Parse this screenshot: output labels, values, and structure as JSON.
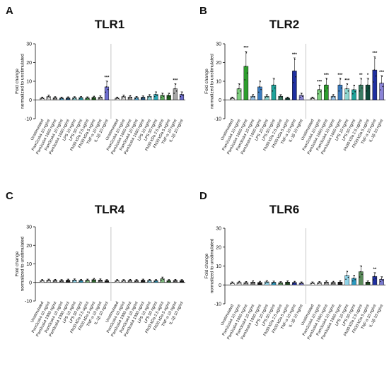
{
  "chart_data": [
    {
      "type": "bar",
      "panel_label": "A",
      "title": "TLR1",
      "ylabel": [
        "Fold change",
        "normalized to unstimulated"
      ],
      "ylim": [
        -10,
        30
      ],
      "yticks": [
        -10,
        0,
        10,
        20,
        30
      ],
      "categories": [
        "Unstimulated",
        "Pam2csk4 10 ng/ml",
        "Pam2csk4 1000 ng/ml",
        "Pam3csk4 10 ng/ml",
        "Pam3csk4 1000 ng/ml",
        "LPS 10 ng/ml",
        "LPS 50 ng/ml",
        "FN30 kDa 2.5 ug/ml",
        "FN30 kDa 5 ug/ml",
        "TNF-α 10 ng/ml",
        "IL-1β 10 ng/ml"
      ],
      "series": [
        {
          "values": [
            1,
            1.8,
            1.2,
            1.0,
            1.1,
            1.2,
            1.3,
            1.1,
            1.4,
            1.5,
            7.0
          ]
        },
        {
          "values": [
            1,
            1.8,
            1.6,
            1.3,
            1.5,
            2.0,
            3.0,
            2.5,
            2.5,
            6.0,
            3.0
          ]
        }
      ],
      "significance": [
        {
          "group": 0,
          "index": 10,
          "label": "***"
        },
        {
          "group": 1,
          "index": 9,
          "label": "***"
        }
      ],
      "colors": [
        "#ffffff",
        "#d9d9d9",
        "#9e9e9e",
        "#5ab4e0",
        "#2c5f8a",
        "#8fd3d6",
        "#2aa9b8",
        "#5aab5a",
        "#1e5f1e",
        "#a6a6a6",
        "#6e6ed0"
      ]
    },
    {
      "type": "bar",
      "panel_label": "B",
      "title": "TLR2",
      "ylabel": [
        "Fold change",
        "normalized to unstimulated"
      ],
      "ylim": [
        -10,
        30
      ],
      "yticks": [
        -10,
        0,
        10,
        20,
        30
      ],
      "categories": [
        "Unstimulated",
        "Pam2csk4 10 ng/ml",
        "Pam2csk4 1000 ng/ml",
        "Pam3csk4 10 ng/ml",
        "Pam3csk4 1000 ng/ml",
        "LPS 10 ng/ml",
        "LPS 50 ng/ml",
        "FN30 kDa 2.5 ug/ml",
        "FN30 kDa 5 ug/ml",
        "TNF-α 10 ng/ml",
        "IL-1β 10 ng/ml"
      ],
      "series": [
        {
          "values": [
            1,
            6,
            18,
            2,
            7,
            2,
            8,
            2,
            1,
            15.5,
            2.5
          ]
        },
        {
          "values": [
            1,
            5.5,
            8,
            2,
            8,
            6,
            5.5,
            8,
            8,
            16,
            9
          ]
        }
      ],
      "significance": [
        {
          "group": 0,
          "index": 2,
          "label": "***"
        },
        {
          "group": 0,
          "index": 9,
          "label": "***"
        },
        {
          "group": 1,
          "index": 1,
          "label": "***"
        },
        {
          "group": 1,
          "index": 2,
          "label": "***"
        },
        {
          "group": 1,
          "index": 4,
          "label": "***"
        },
        {
          "group": 1,
          "index": 5,
          "label": "***"
        },
        {
          "group": 1,
          "index": 7,
          "label": "**"
        },
        {
          "group": 1,
          "index": 8,
          "label": "*"
        },
        {
          "group": 1,
          "index": 9,
          "label": "***"
        },
        {
          "group": 1,
          "index": 10,
          "label": "***"
        }
      ],
      "colors": [
        "#ffffff",
        "#7fd07f",
        "#2e9e2e",
        "#9cc8ec",
        "#3a7bbf",
        "#8fd8d0",
        "#1fa39a",
        "#3a7a62",
        "#0f4a3a",
        "#1f2fa0",
        "#8b84d6"
      ]
    },
    {
      "type": "bar",
      "panel_label": "C",
      "title": "TLR4",
      "ylabel": [
        "Fold change",
        "normalized to unstimulated"
      ],
      "ylim": [
        -10,
        30
      ],
      "yticks": [
        -10,
        0,
        10,
        20,
        30
      ],
      "categories": [
        "Unstimulated",
        "Pam2csk4 10 ng/ml",
        "Pam2csk4 1000 ng/ml",
        "Pam3csk4 10 ng/ml",
        "Pam3csk4 1000 ng/ml",
        "LPS 10 ng/ml",
        "LPS 50 ng/ml",
        "FN30 kDa 2.5 ug/ml",
        "FN30 kDa 5 ug/ml",
        "TNF-α 10 ng/ml",
        "IL-1β 10 ng/ml"
      ],
      "series": [
        {
          "values": [
            1,
            1.2,
            1.1,
            1.0,
            1.2,
            1.3,
            1.1,
            1.2,
            1.5,
            1.3,
            1.0
          ]
        },
        {
          "values": [
            1,
            1.0,
            1.1,
            1.0,
            1.2,
            1.1,
            1.0,
            2.0,
            1.0,
            1.1,
            1.0
          ]
        }
      ],
      "significance": [],
      "colors": [
        "#ffffff",
        "#d9d9d9",
        "#9e9e9e",
        "#7a7a7a",
        "#1a1a1a",
        "#8ed3e8",
        "#2a9ac0",
        "#7cb87c",
        "#2f6a2f",
        "#6a6a6a",
        "#1a1a1a"
      ]
    },
    {
      "type": "bar",
      "panel_label": "D",
      "title": "TLR6",
      "ylabel": [
        "Fold change",
        "normalized to unstimulated"
      ],
      "ylim": [
        -10,
        30
      ],
      "yticks": [
        -10,
        0,
        10,
        20,
        30
      ],
      "categories": [
        "Unstimulated",
        "Pam2csk4 10 ng/ml",
        "Pam2csk4 1000 ng/ml",
        "Pam3csk4 10 ng/ml",
        "Pam3csk4 1000 ng/ml",
        "LPS 10 ng/ml",
        "LPS 50 ng/ml",
        "FN30 kDa 2.5 ug/ml",
        "FN30 kDa 5 ug/ml",
        "TNF-α 10 ng/ml",
        "IL-1β 10 ng/ml"
      ],
      "series": [
        {
          "values": [
            1,
            1.3,
            1.2,
            1.5,
            1.3,
            1.6,
            1.4,
            1.2,
            1.5,
            1.3,
            1.0
          ]
        },
        {
          "values": [
            1,
            1.2,
            1.5,
            1.3,
            1.5,
            5.0,
            3.5,
            7.0,
            1.5,
            4.5,
            3.0
          ]
        }
      ],
      "significance": [
        {
          "group": 1,
          "index": 9,
          "label": "**"
        }
      ],
      "colors": [
        "#ffffff",
        "#d9d9d9",
        "#9e9e9e",
        "#7a7a7a",
        "#1a1a1a",
        "#8ed3e8",
        "#2a9ac0",
        "#5a8a5a",
        "#1f4a1f",
        "#1f2fa0",
        "#7a7ad0"
      ]
    }
  ]
}
